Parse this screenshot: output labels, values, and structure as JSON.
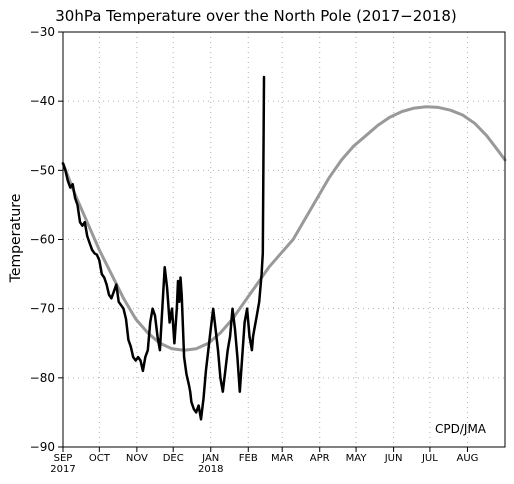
{
  "chart_data": {
    "type": "line",
    "title": "30hPa Temperature over the North Pole (2017−2018)",
    "ylabel": "Temperature",
    "xlabel": "",
    "annotation": "CPD/JMA",
    "ylim": [
      -90,
      -30
    ],
    "yticks": [
      -30,
      -40,
      -50,
      -60,
      -70,
      -80,
      -90
    ],
    "xlim": [
      0,
      365
    ],
    "months": [
      {
        "label": "SEP",
        "day": 0
      },
      {
        "label": "OCT",
        "day": 30
      },
      {
        "label": "NOV",
        "day": 61
      },
      {
        "label": "DEC",
        "day": 91
      },
      {
        "label": "JAN",
        "day": 122
      },
      {
        "label": "FEB",
        "day": 153
      },
      {
        "label": "MAR",
        "day": 181
      },
      {
        "label": "APR",
        "day": 212
      },
      {
        "label": "MAY",
        "day": 242
      },
      {
        "label": "JUN",
        "day": 273
      },
      {
        "label": "JUL",
        "day": 303
      },
      {
        "label": "AUG",
        "day": 334
      }
    ],
    "year_labels": [
      {
        "label": "2017",
        "day": 0
      },
      {
        "label": "2018",
        "day": 122
      }
    ],
    "grid": true,
    "series": [
      {
        "color": "#999999",
        "x": [
          0,
          10,
          20,
          30,
          40,
          50,
          60,
          70,
          80,
          90,
          100,
          110,
          120,
          130,
          140,
          150,
          160,
          170,
          180,
          190,
          200,
          210,
          220,
          230,
          240,
          250,
          260,
          270,
          280,
          290,
          300,
          310,
          320,
          330,
          340,
          350,
          360,
          365
        ],
        "y": [
          -49,
          -53.5,
          -57.5,
          -61.5,
          -65,
          -68.5,
          -71.5,
          -73.5,
          -75,
          -75.8,
          -76,
          -75.8,
          -75,
          -73.5,
          -71.5,
          -69,
          -66.5,
          -64,
          -62,
          -60,
          -57,
          -54,
          -51,
          -48.5,
          -46.5,
          -45,
          -43.5,
          -42.3,
          -41.5,
          -41,
          -40.8,
          -40.9,
          -41.3,
          -42,
          -43.2,
          -45,
          -47.3,
          -48.5
        ]
      },
      {
        "color": "#000000",
        "x": [
          0,
          2,
          4,
          6,
          8,
          10,
          12,
          14,
          16,
          18,
          20,
          22,
          24,
          26,
          28,
          30,
          32,
          34,
          36,
          38,
          40,
          42,
          44,
          46,
          48,
          50,
          52,
          54,
          56,
          58,
          60,
          62,
          64,
          66,
          68,
          70,
          72,
          74,
          76,
          78,
          80,
          82,
          84,
          86,
          88,
          90,
          92,
          94,
          95,
          96,
          97,
          98,
          100,
          102,
          104,
          105,
          106,
          107,
          108,
          110,
          112,
          114,
          116,
          118,
          120,
          122,
          124,
          126,
          128,
          130,
          132,
          134,
          136,
          138,
          140,
          142,
          144,
          146,
          148,
          150,
          152,
          153,
          154,
          155,
          156,
          157,
          158,
          160,
          162,
          163,
          164,
          165,
          166
        ],
        "y": [
          -49,
          -50,
          -51.5,
          -52.5,
          -52,
          -54,
          -55,
          -57.5,
          -58,
          -57.5,
          -59.5,
          -60.5,
          -61.5,
          -62,
          -62.2,
          -63,
          -65,
          -65.5,
          -66.5,
          -68,
          -68.5,
          -67.5,
          -66.5,
          -69,
          -69.5,
          -70,
          -71.5,
          -74.5,
          -75.5,
          -77,
          -77.5,
          -77,
          -77.5,
          -79,
          -77,
          -76,
          -72,
          -70,
          -71,
          -74,
          -76,
          -70,
          -64,
          -67,
          -72,
          -70,
          -75,
          -70,
          -66,
          -69,
          -65.5,
          -68,
          -77,
          -79.5,
          -81,
          -82,
          -83.5,
          -84,
          -84.5,
          -85,
          -84,
          -86,
          -83,
          -79,
          -76,
          -73,
          -70,
          -73,
          -76,
          -80,
          -82,
          -79,
          -76,
          -74,
          -70,
          -73,
          -77,
          -82,
          -77,
          -72,
          -70,
          -72,
          -74,
          -75,
          -76,
          -74,
          -73,
          -71,
          -69,
          -67,
          -65,
          -62,
          -36.5
        ]
      }
    ]
  }
}
